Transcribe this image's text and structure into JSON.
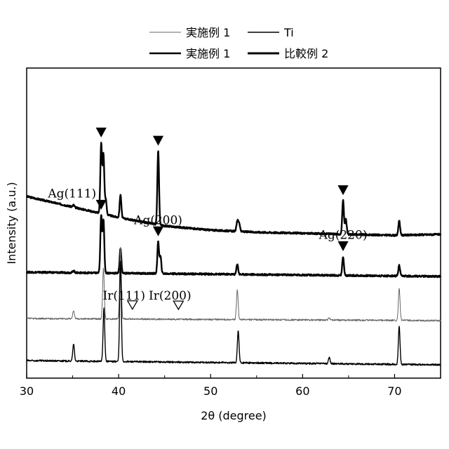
{
  "chart_data": {
    "type": "line",
    "xlabel": "2θ (degree)",
    "ylabel": "Intensity (a.u.)",
    "xlim": [
      30,
      75
    ],
    "x_ticks": [
      30,
      40,
      50,
      60,
      70
    ],
    "y_ticks": "none",
    "grid": false,
    "legend_placement": "top, outside plot, two columns",
    "legend": [
      "実施例 1",
      "Ti",
      "実施例 1",
      "比較例 2"
    ],
    "series": [
      {
        "name": "比較例 2",
        "stroke": "#000000",
        "weight": "heavy",
        "offset": 0.62,
        "background": [
          [
            30,
            0.18
          ],
          [
            35,
            0.13
          ],
          [
            40,
            0.08
          ],
          [
            45,
            0.04
          ],
          [
            50,
            0.02
          ],
          [
            55,
            0.01
          ],
          [
            60,
            0.005
          ],
          [
            65,
            0.0
          ],
          [
            70,
            -0.005
          ],
          [
            75,
            0.0
          ]
        ],
        "peaks": [
          [
            35.1,
            0.01
          ],
          [
            38.1,
            0.33
          ],
          [
            38.35,
            0.28
          ],
          [
            38.6,
            0.07
          ],
          [
            40.2,
            0.11
          ],
          [
            44.3,
            0.35
          ],
          [
            52.9,
            0.05
          ],
          [
            53.1,
            0.04
          ],
          [
            64.4,
            0.16
          ],
          [
            64.7,
            0.07
          ],
          [
            70.5,
            0.07
          ]
        ]
      },
      {
        "name": "実施例 1",
        "stroke": "#000000",
        "weight": "heavy",
        "offset": 0.42,
        "background": [
          [
            30,
            0.02
          ],
          [
            75,
            0.0
          ]
        ],
        "peaks": [
          [
            35.1,
            0.01
          ],
          [
            38.1,
            0.27
          ],
          [
            38.35,
            0.25
          ],
          [
            40.2,
            0.12
          ],
          [
            44.3,
            0.15
          ],
          [
            44.55,
            0.08
          ],
          [
            52.9,
            0.05
          ],
          [
            64.4,
            0.09
          ],
          [
            70.5,
            0.05
          ]
        ]
      },
      {
        "name": "実施例 1",
        "stroke": "#666666",
        "weight": "thin",
        "offset": 0.22,
        "background": [
          [
            30,
            0.0
          ],
          [
            75,
            -0.01
          ]
        ],
        "peaks": [
          [
            35.1,
            0.04
          ],
          [
            38.35,
            0.24
          ],
          [
            40.2,
            0.34
          ],
          [
            52.9,
            0.14
          ],
          [
            62.9,
            0.01
          ],
          [
            70.5,
            0.15
          ]
        ]
      },
      {
        "name": "Ti",
        "stroke": "#000000",
        "weight": "normal",
        "offset": 0.0,
        "background": [
          [
            30,
            0.02
          ],
          [
            75,
            0.0
          ]
        ],
        "peaks": [
          [
            35.1,
            0.08
          ],
          [
            38.4,
            0.25
          ],
          [
            40.2,
            0.48
          ],
          [
            53.0,
            0.15
          ],
          [
            62.9,
            0.03
          ],
          [
            70.5,
            0.18
          ]
        ]
      }
    ],
    "annotations": [
      {
        "label": "",
        "x": 38.1,
        "series": 0,
        "marker": "filled-triangle"
      },
      {
        "label": "",
        "x": 44.3,
        "series": 0,
        "marker": "filled-triangle"
      },
      {
        "label": "",
        "x": 64.4,
        "series": 0,
        "marker": "filled-triangle"
      },
      {
        "label": "Ag(111)",
        "x": 38.1,
        "series": 1,
        "marker": "filled-triangle"
      },
      {
        "label": "Ag(200)",
        "x": 44.3,
        "series": 1,
        "marker": "filled-triangle"
      },
      {
        "label": "Ag(220)",
        "x": 64.4,
        "series": 1,
        "marker": "filled-triangle"
      },
      {
        "label": "Ir(111)",
        "x": 41.5,
        "series": 2,
        "marker": "open-triangle"
      },
      {
        "label": "Ir(200)",
        "x": 46.5,
        "series": 2,
        "marker": "open-triangle"
      }
    ]
  }
}
